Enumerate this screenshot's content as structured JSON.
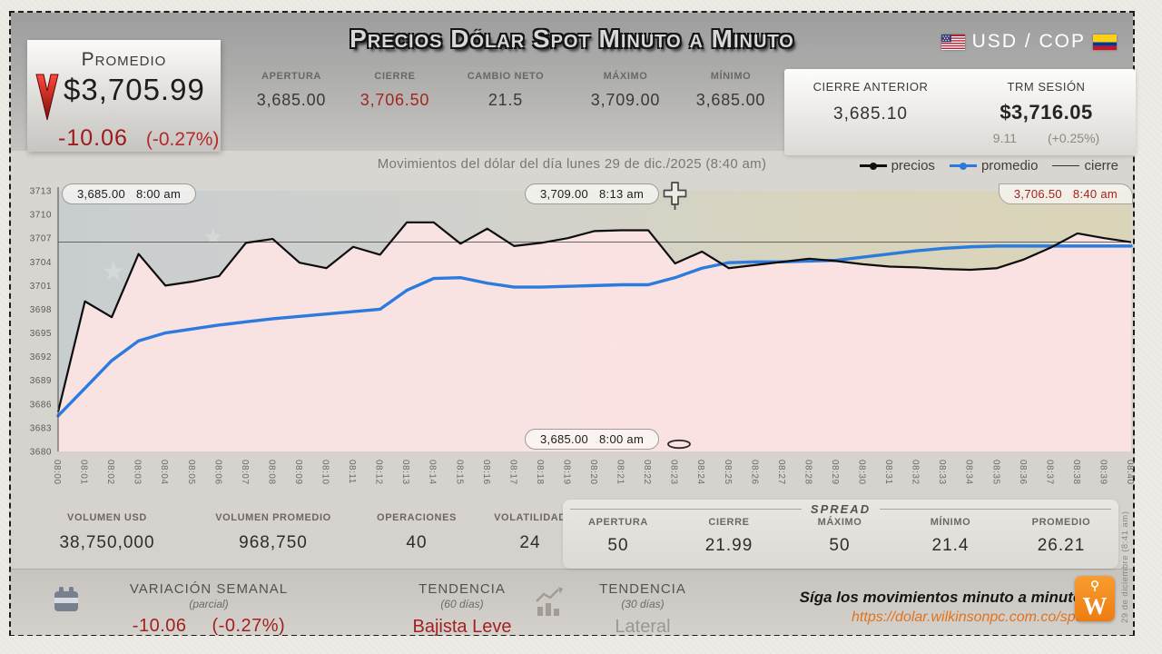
{
  "title": "Precios Dólar Spot Minuto a Minuto",
  "pair": "USD / COP",
  "promedio_box": {
    "label": "Promedio",
    "value": "$3,705.99",
    "change": "-10.06",
    "change_pct": "(-0.27%)"
  },
  "header_stats": {
    "apertura": {
      "label": "APERTURA",
      "value": "3,685.00"
    },
    "cierre": {
      "label": "CIERRE",
      "value": "3,706.50"
    },
    "cambio_neto": {
      "label": "CAMBIO NETO",
      "value": "21.5"
    },
    "maximo": {
      "label": "MÁXIMO",
      "value": "3,709.00"
    },
    "minimo": {
      "label": "MÍNIMO",
      "value": "3,685.00"
    },
    "cierre_anterior": {
      "label": "CIERRE ANTERIOR",
      "value": "3,685.10"
    },
    "trm": {
      "label": "TRM SESIÓN",
      "value": "$3,716.05",
      "change": "9.11",
      "change_pct": "(+0.25%)"
    }
  },
  "subtitle": "Movimientos del dólar del día lunes 29 de dic./2025 (8:40 am)",
  "legend": {
    "precios": "precios",
    "promedio": "promedio",
    "cierre": "cierre"
  },
  "annotations": {
    "apertura": {
      "value": "3,685.00",
      "time": "8:00 am"
    },
    "maximo": {
      "value": "3,709.00",
      "time": "8:13 am"
    },
    "cierre": {
      "value": "3,706.50",
      "time": "8:40 am"
    },
    "minimo": {
      "value": "3,685.00",
      "time": "8:00 am"
    }
  },
  "chart_data": {
    "type": "line",
    "title": "Movimientos del dólar del día lunes 29 de dic./2025 (8:40 am)",
    "xlabel": "",
    "ylabel": "",
    "ylim": [
      3680,
      3713
    ],
    "ytick_step": 3,
    "legend_position": "top-right",
    "x_labels": [
      "08:00",
      "08:01",
      "08:02",
      "08:03",
      "08:04",
      "08:05",
      "08:06",
      "08:07",
      "08:08",
      "08:09",
      "08:10",
      "08:11",
      "08:12",
      "08:13",
      "08:14",
      "08:15",
      "08:16",
      "08:17",
      "08:18",
      "08:19",
      "08:20",
      "08:21",
      "08:22",
      "08:23",
      "08:24",
      "08:25",
      "08:26",
      "08:27",
      "08:28",
      "08:29",
      "08:30",
      "08:31",
      "08:32",
      "08:33",
      "08:34",
      "08:35",
      "08:36",
      "08:37",
      "08:38",
      "08:39",
      "08:40"
    ],
    "series": [
      {
        "name": "precios",
        "color": "#0d0d0d",
        "values": [
          3685.0,
          3699.0,
          3697.0,
          3705.0,
          3701.0,
          3701.5,
          3702.2,
          3706.4,
          3706.9,
          3703.9,
          3703.2,
          3705.9,
          3704.9,
          3709.0,
          3709.0,
          3706.3,
          3708.2,
          3706.0,
          3706.4,
          3707.0,
          3707.9,
          3708.0,
          3708.0,
          3703.8,
          3705.3,
          3703.2,
          3703.6,
          3704.0,
          3704.4,
          3704.1,
          3703.7,
          3703.4,
          3703.3,
          3703.1,
          3703.0,
          3703.2,
          3704.3,
          3705.8,
          3707.6,
          3707.0,
          3706.5
        ]
      },
      {
        "name": "promedio",
        "color": "#2b7bdf",
        "values": [
          3684.5,
          3688.0,
          3691.5,
          3694.0,
          3695.0,
          3695.5,
          3696.0,
          3696.4,
          3696.8,
          3697.1,
          3697.4,
          3697.7,
          3698.0,
          3700.4,
          3701.9,
          3702.0,
          3701.3,
          3700.8,
          3700.8,
          3700.9,
          3701.0,
          3701.1,
          3701.1,
          3702.0,
          3703.2,
          3703.9,
          3704.0,
          3704.0,
          3704.1,
          3704.2,
          3704.6,
          3705.0,
          3705.4,
          3705.7,
          3705.9,
          3706.0,
          3706.0,
          3706.0,
          3706.0,
          3706.0,
          3706.0
        ]
      },
      {
        "name": "cierre",
        "color": "#666666",
        "constant": 3706.5
      }
    ]
  },
  "volume_stats": [
    {
      "label": "VOLUMEN USD",
      "value": "38,750,000"
    },
    {
      "label": "VOLUMEN PROMEDIO",
      "value": "968,750"
    },
    {
      "label": "OPERACIONES",
      "value": "40"
    },
    {
      "label": "VOLATILIDAD",
      "value": "24"
    }
  ],
  "spread": {
    "title": "SPREAD",
    "items": [
      {
        "label": "APERTURA",
        "value": "50"
      },
      {
        "label": "CIERRE",
        "value": "21.99"
      },
      {
        "label": "MÁXIMO",
        "value": "50"
      },
      {
        "label": "MÍNIMO",
        "value": "21.4"
      },
      {
        "label": "PROMEDIO",
        "value": "26.21"
      }
    ]
  },
  "footer": {
    "variacion": {
      "label": "VARIACIÓN SEMANAL",
      "sub": "(parcial)",
      "value": "-10.06",
      "pct": "(-0.27%)"
    },
    "tendencia60": {
      "label": "TENDENCIA",
      "sub": "(60 días)",
      "value": "Bajista Leve"
    },
    "tendencia30": {
      "label": "TENDENCIA",
      "sub": "(30 días)",
      "value": "Lateral"
    },
    "follow_text": "Síga los movimientos minuto a minuto:",
    "follow_url": "https://dolar.wilkinsonpc.com.co/spot",
    "date_note": "29 de diciembre (8:41 am)"
  },
  "colors": {
    "accent_red": "#a32020",
    "line_precios": "#0d0d0d",
    "line_promedio": "#2b7bdf",
    "line_cierre": "#666666",
    "area_fill": "#fbe3e3",
    "url_orange": "#e0731d",
    "logo_orange": "#ee7d12"
  }
}
